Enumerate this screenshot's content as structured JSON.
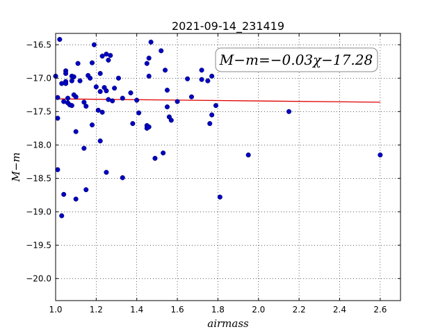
{
  "chart_data": {
    "type": "scatter",
    "title": "2021-09-14_231419",
    "xlabel": "airmass",
    "ylabel": "M−m",
    "xlim": [
      1.0,
      2.7
    ],
    "ylim": [
      -20.33,
      -16.33
    ],
    "y_inverted": false,
    "x_ticks": [
      "1.0",
      "1.2",
      "1.4",
      "1.6",
      "1.8",
      "2.0",
      "2.2",
      "2.4",
      "2.6"
    ],
    "x_tick_values": [
      1.0,
      1.2,
      1.4,
      1.6,
      1.8,
      2.0,
      2.2,
      2.4,
      2.6
    ],
    "y_ticks": [
      "−16.5",
      "−17.0",
      "−17.5",
      "−18.0",
      "−18.5",
      "−19.0",
      "−19.5",
      "−20.0"
    ],
    "y_tick_values": [
      -16.5,
      -17.0,
      -17.5,
      -18.0,
      -18.5,
      -19.0,
      -19.5,
      -20.0
    ],
    "grid": true,
    "annotation": "M−m=−0.03χ−17.28",
    "colors": {
      "points": "#0000c0",
      "fit_line": "#e00000"
    },
    "fit_line": {
      "x": [
        1.0,
        2.6
      ],
      "y": [
        -17.31,
        -17.36
      ]
    },
    "points": [
      {
        "x": 1.0,
        "y": -16.97
      },
      {
        "x": 1.01,
        "y": -17.29
      },
      {
        "x": 1.01,
        "y": -17.6
      },
      {
        "x": 1.01,
        "y": -18.37
      },
      {
        "x": 1.02,
        "y": -16.42
      },
      {
        "x": 1.03,
        "y": -17.08
      },
      {
        "x": 1.03,
        "y": -19.06
      },
      {
        "x": 1.04,
        "y": -17.35
      },
      {
        "x": 1.04,
        "y": -18.74
      },
      {
        "x": 1.05,
        "y": -16.89
      },
      {
        "x": 1.05,
        "y": -16.93
      },
      {
        "x": 1.05,
        "y": -17.05
      },
      {
        "x": 1.05,
        "y": -17.08
      },
      {
        "x": 1.06,
        "y": -17.3
      },
      {
        "x": 1.06,
        "y": -17.37
      },
      {
        "x": 1.07,
        "y": -17.4
      },
      {
        "x": 1.08,
        "y": -16.97
      },
      {
        "x": 1.08,
        "y": -17.04
      },
      {
        "x": 1.08,
        "y": -17.41
      },
      {
        "x": 1.09,
        "y": -16.98
      },
      {
        "x": 1.09,
        "y": -17.25
      },
      {
        "x": 1.1,
        "y": -17.28
      },
      {
        "x": 1.1,
        "y": -17.8
      },
      {
        "x": 1.1,
        "y": -18.81
      },
      {
        "x": 1.11,
        "y": -16.78
      },
      {
        "x": 1.12,
        "y": -17.04
      },
      {
        "x": 1.14,
        "y": -17.36
      },
      {
        "x": 1.14,
        "y": -18.05
      },
      {
        "x": 1.15,
        "y": -17.42
      },
      {
        "x": 1.15,
        "y": -18.67
      },
      {
        "x": 1.16,
        "y": -16.96
      },
      {
        "x": 1.17,
        "y": -17.0
      },
      {
        "x": 1.18,
        "y": -16.77
      },
      {
        "x": 1.18,
        "y": -17.7
      },
      {
        "x": 1.19,
        "y": -16.5
      },
      {
        "x": 1.2,
        "y": -17.13
      },
      {
        "x": 1.21,
        "y": -17.48
      },
      {
        "x": 1.22,
        "y": -16.93
      },
      {
        "x": 1.22,
        "y": -17.2
      },
      {
        "x": 1.22,
        "y": -17.94
      },
      {
        "x": 1.23,
        "y": -16.67
      },
      {
        "x": 1.23,
        "y": -17.51
      },
      {
        "x": 1.24,
        "y": -17.14
      },
      {
        "x": 1.25,
        "y": -16.64
      },
      {
        "x": 1.25,
        "y": -17.19
      },
      {
        "x": 1.25,
        "y": -18.41
      },
      {
        "x": 1.26,
        "y": -16.73
      },
      {
        "x": 1.26,
        "y": -17.32
      },
      {
        "x": 1.27,
        "y": -16.66
      },
      {
        "x": 1.28,
        "y": -17.34
      },
      {
        "x": 1.29,
        "y": -17.15
      },
      {
        "x": 1.31,
        "y": -17.0
      },
      {
        "x": 1.33,
        "y": -17.3
      },
      {
        "x": 1.33,
        "y": -18.49
      },
      {
        "x": 1.37,
        "y": -17.22
      },
      {
        "x": 1.38,
        "y": -17.68
      },
      {
        "x": 1.4,
        "y": -17.33
      },
      {
        "x": 1.41,
        "y": -17.52
      },
      {
        "x": 1.45,
        "y": -16.78
      },
      {
        "x": 1.45,
        "y": -17.71
      },
      {
        "x": 1.45,
        "y": -17.75
      },
      {
        "x": 1.46,
        "y": -16.7
      },
      {
        "x": 1.46,
        "y": -16.97
      },
      {
        "x": 1.46,
        "y": -17.73
      },
      {
        "x": 1.47,
        "y": -16.46
      },
      {
        "x": 1.49,
        "y": -18.2
      },
      {
        "x": 1.52,
        "y": -16.59
      },
      {
        "x": 1.53,
        "y": -18.12
      },
      {
        "x": 1.54,
        "y": -16.88
      },
      {
        "x": 1.55,
        "y": -17.18
      },
      {
        "x": 1.55,
        "y": -17.43
      },
      {
        "x": 1.56,
        "y": -17.58
      },
      {
        "x": 1.57,
        "y": -17.63
      },
      {
        "x": 1.6,
        "y": -17.35
      },
      {
        "x": 1.65,
        "y": -17.01
      },
      {
        "x": 1.67,
        "y": -17.28
      },
      {
        "x": 1.72,
        "y": -16.88
      },
      {
        "x": 1.72,
        "y": -17.02
      },
      {
        "x": 1.75,
        "y": -17.04
      },
      {
        "x": 1.76,
        "y": -17.68
      },
      {
        "x": 1.77,
        "y": -16.97
      },
      {
        "x": 1.77,
        "y": -17.55
      },
      {
        "x": 1.79,
        "y": -17.41
      },
      {
        "x": 1.81,
        "y": -18.78
      },
      {
        "x": 1.95,
        "y": -18.15
      },
      {
        "x": 2.15,
        "y": -17.5
      },
      {
        "x": 2.6,
        "y": -18.15
      }
    ]
  }
}
